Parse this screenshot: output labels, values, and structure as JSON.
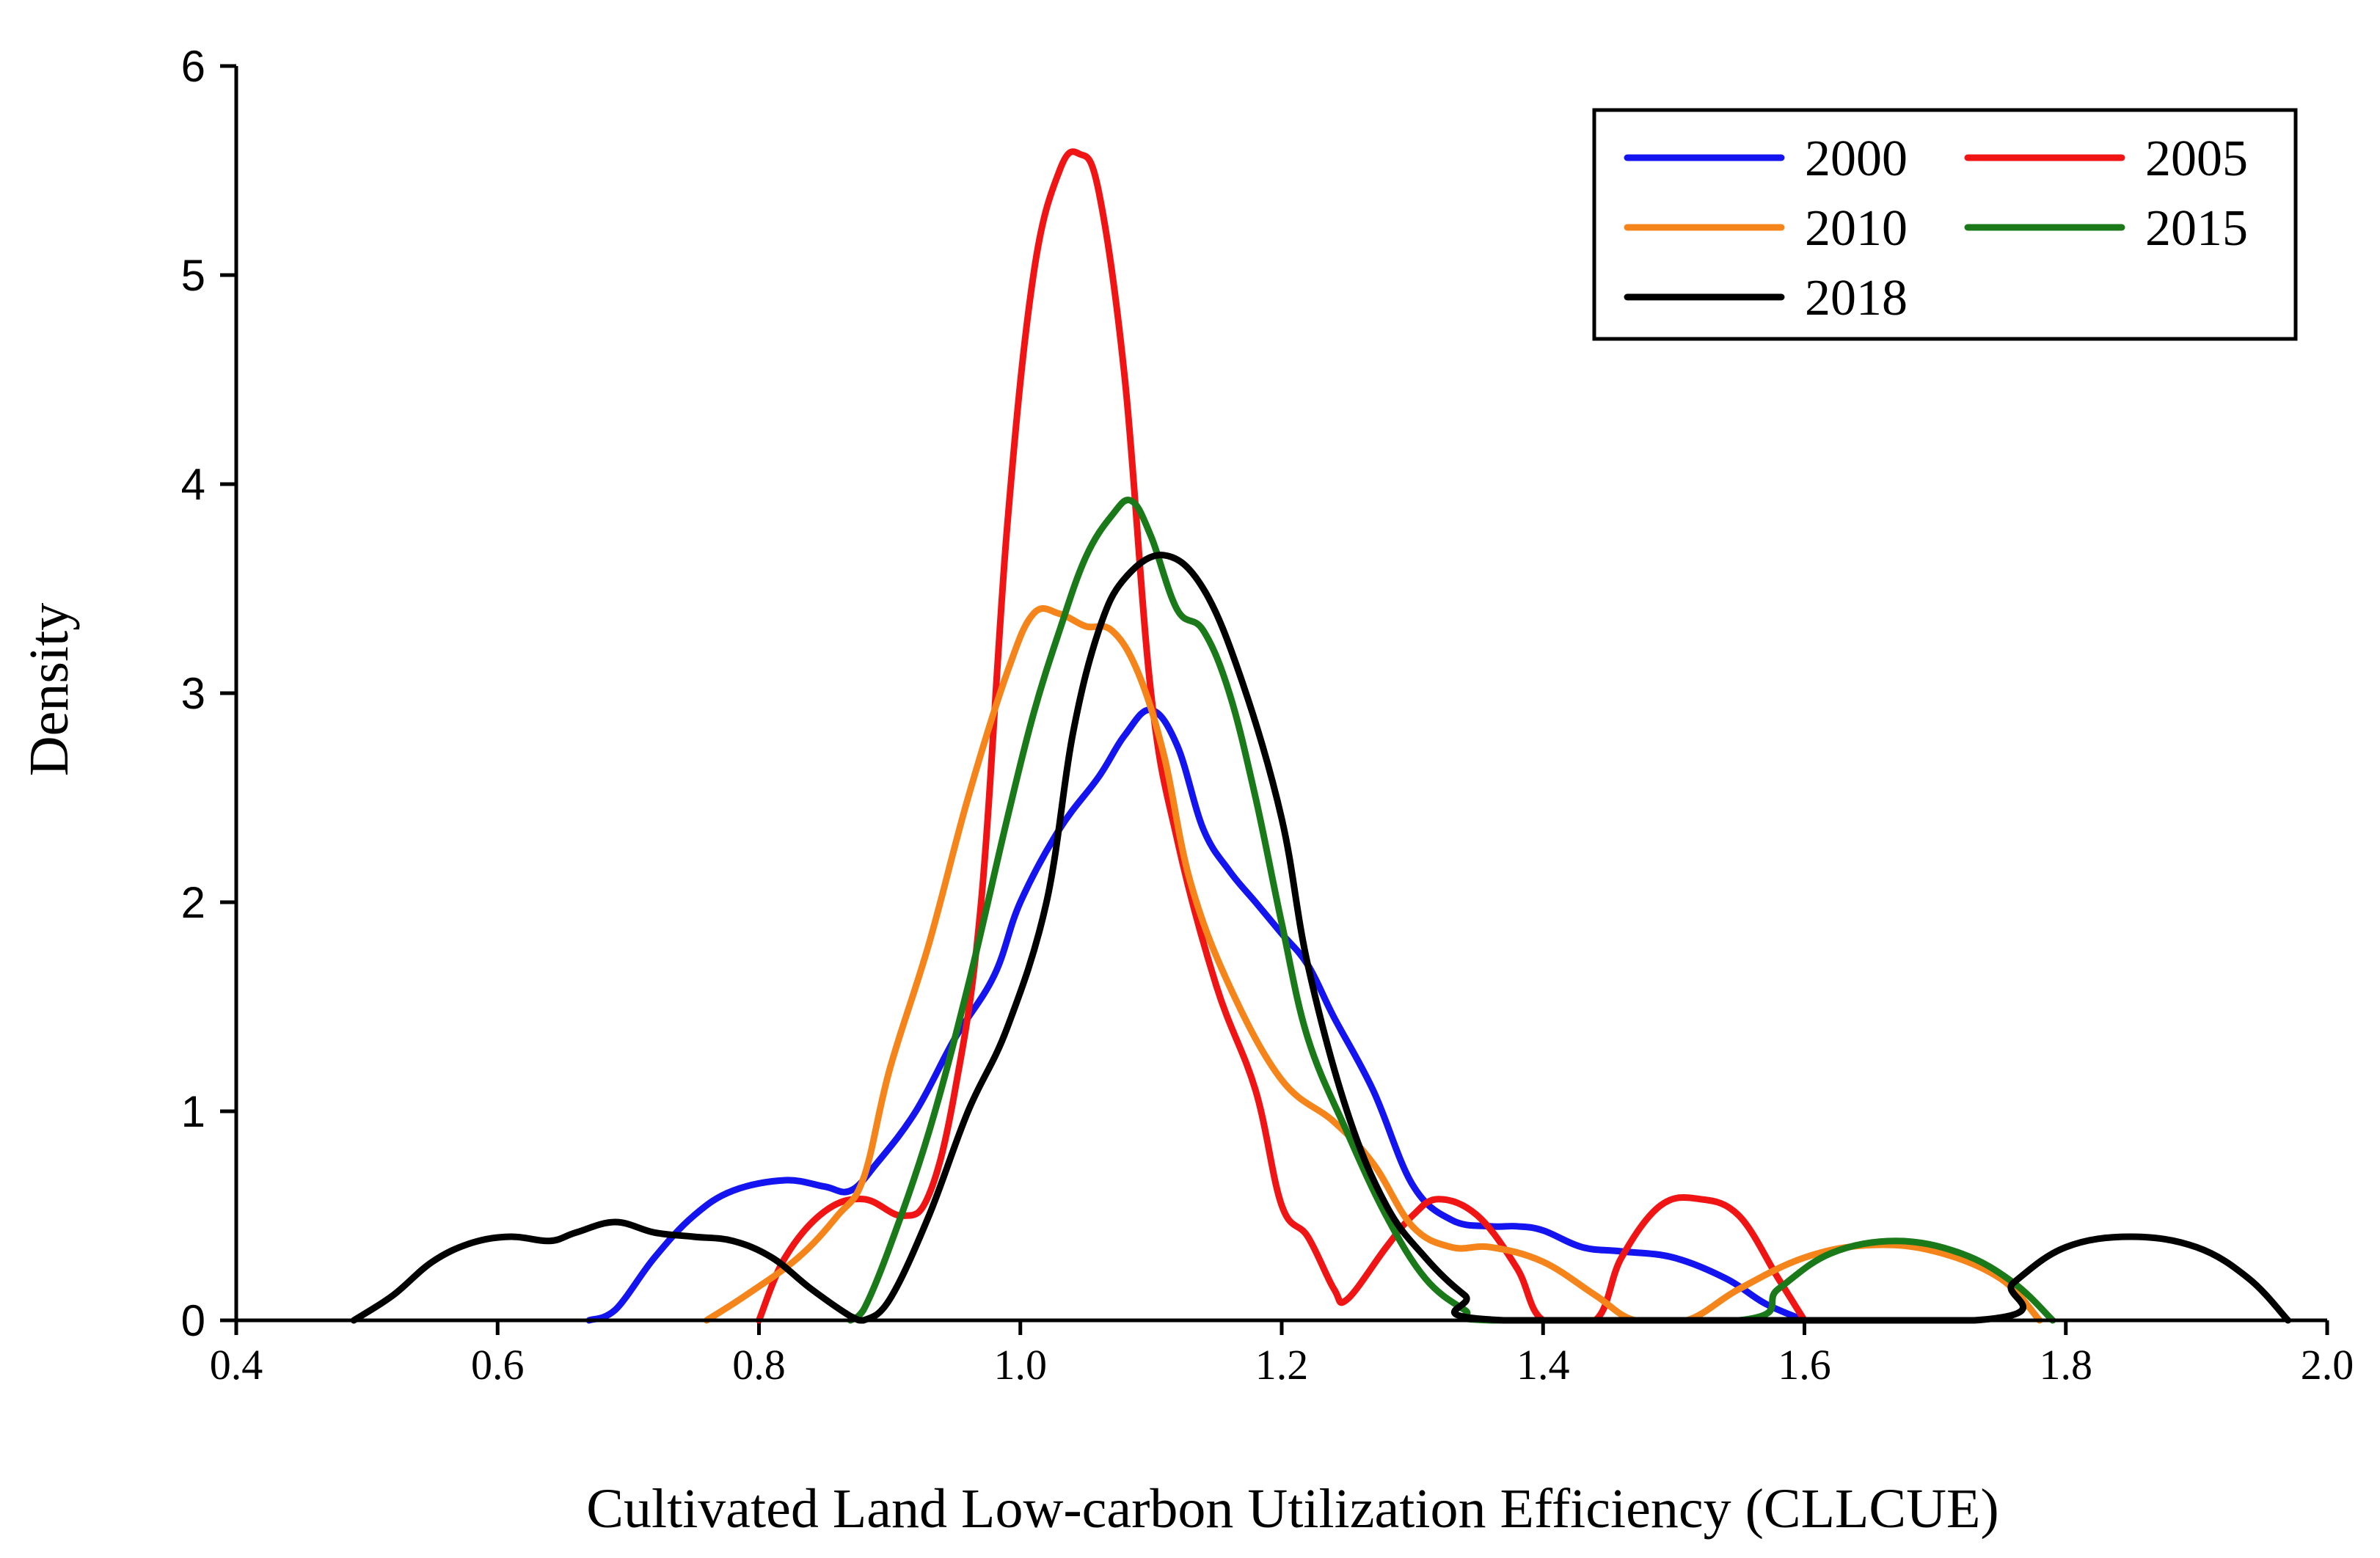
{
  "chart_data": {
    "type": "line",
    "title": "",
    "xlabel": "Cultivated Land Low-carbon Utilization Efficiency (CLLCUE)",
    "ylabel": "Density",
    "xlim": [
      0.4,
      2.0
    ],
    "ylim": [
      0,
      6
    ],
    "x_ticks": [
      "0.4",
      "0.6",
      "0.8",
      "1.0",
      "1.2",
      "1.4",
      "1.6",
      "1.8",
      "2.0"
    ],
    "y_ticks": [
      "0",
      "1",
      "2",
      "3",
      "4",
      "5",
      "6"
    ],
    "legend": {
      "position": "top-right"
    },
    "series": [
      {
        "name": "2000",
        "color": "#1414f0",
        "points": [
          [
            0.67,
            0
          ],
          [
            0.69,
            0.05
          ],
          [
            0.72,
            0.3
          ],
          [
            0.75,
            0.5
          ],
          [
            0.78,
            0.62
          ],
          [
            0.82,
            0.67
          ],
          [
            0.85,
            0.64
          ],
          [
            0.87,
            0.62
          ],
          [
            0.89,
            0.75
          ],
          [
            0.92,
            1.0
          ],
          [
            0.95,
            1.35
          ],
          [
            0.98,
            1.65
          ],
          [
            1.0,
            2.0
          ],
          [
            1.03,
            2.35
          ],
          [
            1.06,
            2.6
          ],
          [
            1.08,
            2.8
          ],
          [
            1.1,
            2.92
          ],
          [
            1.12,
            2.75
          ],
          [
            1.14,
            2.35
          ],
          [
            1.16,
            2.15
          ],
          [
            1.18,
            2.0
          ],
          [
            1.2,
            1.85
          ],
          [
            1.22,
            1.7
          ],
          [
            1.24,
            1.45
          ],
          [
            1.27,
            1.1
          ],
          [
            1.3,
            0.65
          ],
          [
            1.33,
            0.48
          ],
          [
            1.36,
            0.45
          ],
          [
            1.38,
            0.45
          ],
          [
            1.4,
            0.43
          ],
          [
            1.43,
            0.35
          ],
          [
            1.46,
            0.33
          ],
          [
            1.5,
            0.3
          ],
          [
            1.54,
            0.2
          ],
          [
            1.57,
            0.08
          ],
          [
            1.6,
            0
          ]
        ]
      },
      {
        "name": "2005",
        "color": "#f01414",
        "points": [
          [
            0.8,
            0
          ],
          [
            0.82,
            0.3
          ],
          [
            0.85,
            0.52
          ],
          [
            0.88,
            0.58
          ],
          [
            0.91,
            0.5
          ],
          [
            0.93,
            0.6
          ],
          [
            0.95,
            1.1
          ],
          [
            0.97,
            2.0
          ],
          [
            0.99,
            3.8
          ],
          [
            1.01,
            5.0
          ],
          [
            1.03,
            5.5
          ],
          [
            1.045,
            5.58
          ],
          [
            1.06,
            5.4
          ],
          [
            1.08,
            4.5
          ],
          [
            1.1,
            3.0
          ],
          [
            1.12,
            2.3
          ],
          [
            1.15,
            1.6
          ],
          [
            1.18,
            1.1
          ],
          [
            1.2,
            0.55
          ],
          [
            1.22,
            0.4
          ],
          [
            1.24,
            0.15
          ],
          [
            1.25,
            0.1
          ],
          [
            1.28,
            0.35
          ],
          [
            1.3,
            0.5
          ],
          [
            1.32,
            0.58
          ],
          [
            1.35,
            0.5
          ],
          [
            1.38,
            0.25
          ],
          [
            1.4,
            0
          ],
          [
            1.44,
            0
          ],
          [
            1.46,
            0.3
          ],
          [
            1.49,
            0.55
          ],
          [
            1.52,
            0.58
          ],
          [
            1.55,
            0.5
          ],
          [
            1.58,
            0.2
          ],
          [
            1.6,
            0
          ]
        ]
      },
      {
        "name": "2010",
        "color": "#f5851a",
        "points": [
          [
            0.76,
            0
          ],
          [
            0.79,
            0.12
          ],
          [
            0.83,
            0.3
          ],
          [
            0.86,
            0.5
          ],
          [
            0.88,
            0.68
          ],
          [
            0.9,
            1.2
          ],
          [
            0.93,
            1.8
          ],
          [
            0.96,
            2.5
          ],
          [
            0.99,
            3.1
          ],
          [
            1.01,
            3.38
          ],
          [
            1.03,
            3.38
          ],
          [
            1.05,
            3.32
          ],
          [
            1.07,
            3.3
          ],
          [
            1.09,
            3.1
          ],
          [
            1.11,
            2.7
          ],
          [
            1.13,
            2.1
          ],
          [
            1.16,
            1.6
          ],
          [
            1.2,
            1.15
          ],
          [
            1.24,
            0.95
          ],
          [
            1.27,
            0.75
          ],
          [
            1.3,
            0.45
          ],
          [
            1.33,
            0.35
          ],
          [
            1.36,
            0.35
          ],
          [
            1.4,
            0.28
          ],
          [
            1.44,
            0.12
          ],
          [
            1.47,
            0
          ],
          [
            1.51,
            0
          ],
          [
            1.55,
            0.15
          ],
          [
            1.6,
            0.3
          ],
          [
            1.65,
            0.36
          ],
          [
            1.7,
            0.33
          ],
          [
            1.75,
            0.2
          ],
          [
            1.78,
            0
          ]
        ]
      },
      {
        "name": "2015",
        "color": "#1a7a1a",
        "points": [
          [
            0.87,
            0
          ],
          [
            0.88,
            0.05
          ],
          [
            0.9,
            0.35
          ],
          [
            0.93,
            0.9
          ],
          [
            0.96,
            1.6
          ],
          [
            0.99,
            2.4
          ],
          [
            1.01,
            2.9
          ],
          [
            1.03,
            3.3
          ],
          [
            1.05,
            3.65
          ],
          [
            1.07,
            3.85
          ],
          [
            1.085,
            3.92
          ],
          [
            1.1,
            3.75
          ],
          [
            1.12,
            3.4
          ],
          [
            1.14,
            3.3
          ],
          [
            1.16,
            3.0
          ],
          [
            1.18,
            2.5
          ],
          [
            1.2,
            1.9
          ],
          [
            1.22,
            1.35
          ],
          [
            1.25,
            0.9
          ],
          [
            1.28,
            0.5
          ],
          [
            1.31,
            0.2
          ],
          [
            1.34,
            0.05
          ],
          [
            1.36,
            0
          ],
          [
            1.55,
            0
          ],
          [
            1.58,
            0.15
          ],
          [
            1.62,
            0.32
          ],
          [
            1.67,
            0.38
          ],
          [
            1.72,
            0.32
          ],
          [
            1.76,
            0.18
          ],
          [
            1.79,
            0
          ]
        ]
      },
      {
        "name": "2018",
        "color": "#000000",
        "points": [
          [
            0.49,
            0
          ],
          [
            0.52,
            0.12
          ],
          [
            0.55,
            0.28
          ],
          [
            0.58,
            0.37
          ],
          [
            0.61,
            0.4
          ],
          [
            0.64,
            0.38
          ],
          [
            0.66,
            0.42
          ],
          [
            0.69,
            0.47
          ],
          [
            0.72,
            0.42
          ],
          [
            0.75,
            0.4
          ],
          [
            0.78,
            0.38
          ],
          [
            0.81,
            0.3
          ],
          [
            0.84,
            0.15
          ],
          [
            0.87,
            0.02
          ],
          [
            0.88,
            0
          ],
          [
            0.9,
            0.1
          ],
          [
            0.93,
            0.5
          ],
          [
            0.96,
            1.0
          ],
          [
            0.99,
            1.4
          ],
          [
            1.02,
            2.0
          ],
          [
            1.04,
            2.8
          ],
          [
            1.06,
            3.3
          ],
          [
            1.08,
            3.55
          ],
          [
            1.11,
            3.66
          ],
          [
            1.14,
            3.5
          ],
          [
            1.17,
            3.05
          ],
          [
            1.2,
            2.4
          ],
          [
            1.22,
            1.7
          ],
          [
            1.25,
            1.0
          ],
          [
            1.28,
            0.55
          ],
          [
            1.31,
            0.3
          ],
          [
            1.34,
            0.12
          ],
          [
            1.37,
            0
          ],
          [
            1.73,
            0
          ],
          [
            1.76,
            0.18
          ],
          [
            1.8,
            0.35
          ],
          [
            1.85,
            0.4
          ],
          [
            1.9,
            0.35
          ],
          [
            1.94,
            0.2
          ],
          [
            1.97,
            0
          ]
        ]
      }
    ]
  }
}
